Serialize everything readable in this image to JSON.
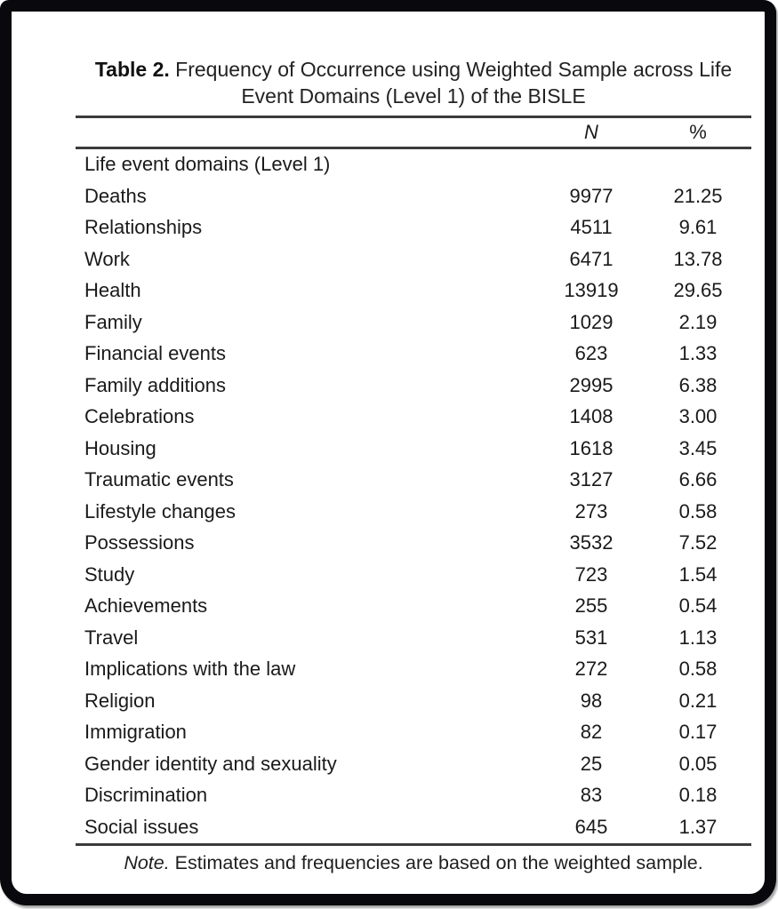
{
  "page": {
    "background_color": "#ffffff",
    "frame_color": "#08080d",
    "rule_color": "#3b3b3b",
    "text_color": "#1a1a1a"
  },
  "table": {
    "title": {
      "prefix": "Table 2.",
      "line1_rest": "Frequency of Occurrence using Weighted Sample across Life",
      "line2": "Event Domains (Level 1) of the BISLE"
    },
    "columns": {
      "n": "N",
      "pct": "%"
    },
    "section_header": "Life event domains (Level 1)",
    "rows": [
      {
        "label": "Deaths",
        "n": "9977",
        "pct": "21.25"
      },
      {
        "label": "Relationships",
        "n": "4511",
        "pct": "9.61"
      },
      {
        "label": "Work",
        "n": "6471",
        "pct": "13.78"
      },
      {
        "label": "Health",
        "n": "13919",
        "pct": "29.65"
      },
      {
        "label": "Family",
        "n": "1029",
        "pct": "2.19"
      },
      {
        "label": "Financial events",
        "n": "623",
        "pct": "1.33"
      },
      {
        "label": "Family additions",
        "n": "2995",
        "pct": "6.38"
      },
      {
        "label": "Celebrations",
        "n": "1408",
        "pct": "3.00"
      },
      {
        "label": "Housing",
        "n": "1618",
        "pct": "3.45"
      },
      {
        "label": "Traumatic events",
        "n": "3127",
        "pct": "6.66"
      },
      {
        "label": "Lifestyle changes",
        "n": "273",
        "pct": "0.58"
      },
      {
        "label": "Possessions",
        "n": "3532",
        "pct": "7.52"
      },
      {
        "label": "Study",
        "n": "723",
        "pct": "1.54"
      },
      {
        "label": "Achievements",
        "n": "255",
        "pct": "0.54"
      },
      {
        "label": "Travel",
        "n": "531",
        "pct": "1.13"
      },
      {
        "label": "Implications with the law",
        "n": "272",
        "pct": "0.58"
      },
      {
        "label": "Religion",
        "n": "98",
        "pct": "0.21"
      },
      {
        "label": "Immigration",
        "n": "82",
        "pct": "0.17"
      },
      {
        "label": "Gender identity and sexuality",
        "n": "25",
        "pct": "0.05"
      },
      {
        "label": "Discrimination",
        "n": "83",
        "pct": "0.18"
      },
      {
        "label": "Social issues",
        "n": "645",
        "pct": "1.37"
      }
    ],
    "note": {
      "prefix": "Note.",
      "text": " Estimates and frequencies are based on the weighted sample."
    }
  }
}
